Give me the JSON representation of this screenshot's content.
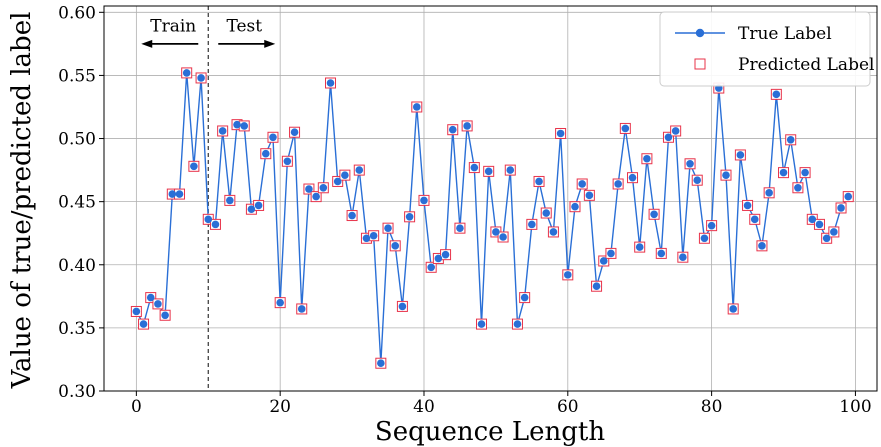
{
  "chart_data": {
    "type": "line",
    "xlabel": "Sequence Length",
    "ylabel": "Value of true/predicted label",
    "xlim": [
      -4.5,
      103
    ],
    "ylim": [
      0.3,
      0.605
    ],
    "xticks": [
      0,
      20,
      40,
      60,
      80,
      100
    ],
    "xtick_labels": [
      "0",
      "20",
      "40",
      "60",
      "80",
      "100"
    ],
    "yticks": [
      0.3,
      0.35,
      0.4,
      0.45,
      0.5,
      0.55,
      0.6
    ],
    "ytick_labels": [
      "0.30",
      "0.35",
      "0.40",
      "0.45",
      "0.50",
      "0.55",
      "0.60"
    ],
    "grid": true,
    "legend_position": "top-right",
    "split_x": 10,
    "annotations": [
      {
        "text": "Train",
        "direction": "left"
      },
      {
        "text": "Test",
        "direction": "right"
      }
    ],
    "x": [
      0,
      1,
      2,
      3,
      4,
      5,
      6,
      7,
      8,
      9,
      10,
      11,
      12,
      13,
      14,
      15,
      16,
      17,
      18,
      19,
      20,
      21,
      22,
      23,
      24,
      25,
      26,
      27,
      28,
      29,
      30,
      31,
      32,
      33,
      34,
      35,
      36,
      37,
      38,
      39,
      40,
      41,
      42,
      43,
      44,
      45,
      46,
      47,
      48,
      49,
      50,
      51,
      52,
      53,
      54,
      55,
      56,
      57,
      58,
      59,
      60,
      61,
      62,
      63,
      64,
      65,
      66,
      67,
      68,
      69,
      70,
      71,
      72,
      73,
      74,
      75,
      76,
      77,
      78,
      79,
      80,
      81,
      82,
      83,
      84,
      85,
      86,
      87,
      88,
      89,
      90,
      91,
      92,
      93,
      94,
      95,
      96,
      97,
      98,
      99
    ],
    "series": [
      {
        "name": "True Label",
        "color": "#2a6fd6",
        "marker": "circle",
        "values": [
          0.363,
          0.353,
          0.374,
          0.369,
          0.36,
          0.456,
          0.456,
          0.552,
          0.478,
          0.548,
          0.436,
          0.432,
          0.506,
          0.451,
          0.511,
          0.51,
          0.444,
          0.447,
          0.488,
          0.501,
          0.37,
          0.482,
          0.505,
          0.365,
          0.46,
          0.454,
          0.461,
          0.544,
          0.466,
          0.471,
          0.439,
          0.475,
          0.421,
          0.423,
          0.322,
          0.429,
          0.415,
          0.367,
          0.438,
          0.525,
          0.451,
          0.398,
          0.405,
          0.408,
          0.507,
          0.429,
          0.51,
          0.477,
          0.353,
          0.474,
          0.426,
          0.422,
          0.475,
          0.353,
          0.374,
          0.432,
          0.466,
          0.441,
          0.426,
          0.504,
          0.392,
          0.446,
          0.464,
          0.455,
          0.383,
          0.403,
          0.409,
          0.464,
          0.508,
          0.469,
          0.414,
          0.484,
          0.44,
          0.409,
          0.501,
          0.506,
          0.406,
          0.48,
          0.467,
          0.421,
          0.431,
          0.54,
          0.471,
          0.365,
          0.487,
          0.447,
          0.436,
          0.415,
          0.457,
          0.535,
          0.473,
          0.499,
          0.461,
          0.473,
          0.436,
          0.432,
          0.421,
          0.426,
          0.445,
          0.454
        ]
      },
      {
        "name": "Predicted Label",
        "color": "#e8334a",
        "marker": "square",
        "values": [
          0.363,
          0.353,
          0.374,
          0.369,
          0.36,
          0.456,
          0.456,
          0.552,
          0.478,
          0.548,
          0.436,
          0.432,
          0.506,
          0.451,
          0.511,
          0.51,
          0.444,
          0.447,
          0.488,
          0.501,
          0.37,
          0.482,
          0.505,
          0.365,
          0.46,
          0.454,
          0.461,
          0.544,
          0.466,
          0.471,
          0.439,
          0.475,
          0.421,
          0.423,
          0.322,
          0.429,
          0.415,
          0.367,
          0.438,
          0.525,
          0.451,
          0.398,
          0.405,
          0.408,
          0.507,
          0.429,
          0.51,
          0.477,
          0.353,
          0.474,
          0.426,
          0.422,
          0.475,
          0.353,
          0.374,
          0.432,
          0.466,
          0.441,
          0.426,
          0.504,
          0.392,
          0.446,
          0.464,
          0.455,
          0.383,
          0.403,
          0.409,
          0.464,
          0.508,
          0.469,
          0.414,
          0.484,
          0.44,
          0.409,
          0.501,
          0.506,
          0.406,
          0.48,
          0.467,
          0.421,
          0.431,
          0.54,
          0.471,
          0.365,
          0.487,
          0.447,
          0.436,
          0.415,
          0.457,
          0.535,
          0.473,
          0.499,
          0.461,
          0.473,
          0.436,
          0.432,
          0.421,
          0.426,
          0.445,
          0.454
        ]
      }
    ]
  }
}
